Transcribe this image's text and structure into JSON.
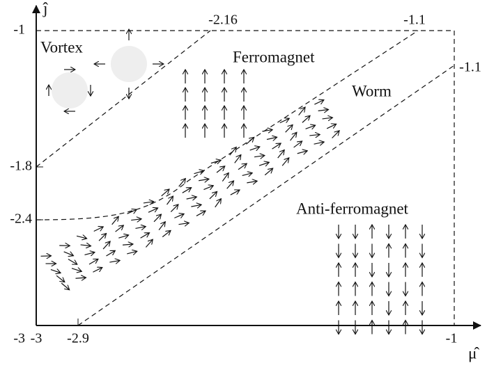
{
  "axes": {
    "x_label": "μ̂",
    "y_label": "ĵ",
    "x_ticks": [
      "-3",
      "-2.9",
      "-1"
    ],
    "y_ticks": [
      "-1",
      "-1.8",
      "-2.4",
      "-3"
    ]
  },
  "boundary_labels": [
    "-2.16",
    "-1.1",
    "-1.1"
  ],
  "regions": [
    "Vortex",
    "Ferromagnet",
    "Worm",
    "Anti-ferromagnet"
  ]
}
